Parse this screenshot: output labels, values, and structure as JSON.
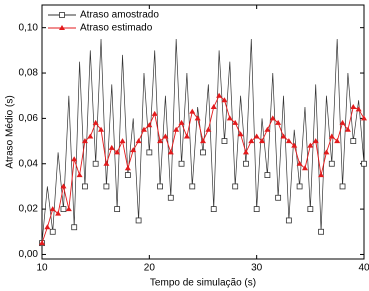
{
  "chart_data": {
    "type": "line",
    "x_label": "Tempo de simulação (s)",
    "y_label": "Atraso Médio (s)",
    "x": [
      10,
      10.5,
      11,
      11.5,
      12,
      12.5,
      13,
      13.5,
      14,
      14.5,
      15,
      15.5,
      16,
      16.5,
      17,
      17.5,
      18,
      18.5,
      19,
      19.5,
      20,
      20.5,
      21,
      21.5,
      22,
      22.5,
      23,
      23.5,
      24,
      24.5,
      25,
      25.5,
      26,
      26.5,
      27,
      27.5,
      28,
      28.5,
      29,
      29.5,
      30,
      30.5,
      31,
      31.5,
      32,
      32.5,
      33,
      33.5,
      34,
      34.5,
      35,
      35.5,
      36,
      36.5,
      37,
      37.5,
      38,
      38.5,
      39,
      39.5,
      40
    ],
    "series": [
      {
        "name": "Atraso amostrado",
        "color": "#333333",
        "marker": "square",
        "values": [
          0.005,
          0.03,
          0.01,
          0.045,
          0.02,
          0.07,
          0.012,
          0.085,
          0.03,
          0.09,
          0.04,
          0.095,
          0.03,
          0.075,
          0.02,
          0.088,
          0.035,
          0.06,
          0.015,
          0.08,
          0.045,
          0.09,
          0.03,
          0.07,
          0.025,
          0.095,
          0.04,
          0.08,
          0.03,
          0.065,
          0.045,
          0.075,
          0.02,
          0.09,
          0.05,
          0.085,
          0.03,
          0.07,
          0.04,
          0.095,
          0.02,
          0.06,
          0.035,
          0.08,
          0.025,
          0.07,
          0.015,
          0.055,
          0.03,
          0.065,
          0.02,
          0.075,
          0.01,
          0.07,
          0.04,
          0.095,
          0.03,
          0.08,
          0.05,
          0.068,
          0.04
        ]
      },
      {
        "name": "Atraso estimado",
        "color": "#e31a1c",
        "marker": "triangle",
        "values": [
          0.005,
          0.012,
          0.02,
          0.018,
          0.03,
          0.02,
          0.042,
          0.035,
          0.05,
          0.052,
          0.058,
          0.055,
          0.04,
          0.047,
          0.045,
          0.05,
          0.038,
          0.046,
          0.05,
          0.055,
          0.057,
          0.062,
          0.05,
          0.052,
          0.045,
          0.055,
          0.058,
          0.052,
          0.063,
          0.06,
          0.05,
          0.055,
          0.065,
          0.07,
          0.068,
          0.06,
          0.058,
          0.053,
          0.045,
          0.05,
          0.052,
          0.05,
          0.055,
          0.06,
          0.058,
          0.052,
          0.05,
          0.048,
          0.04,
          0.038,
          0.048,
          0.05,
          0.035,
          0.045,
          0.052,
          0.05,
          0.058,
          0.055,
          0.065,
          0.064,
          0.06
        ]
      }
    ],
    "xlim": [
      10,
      40
    ],
    "xticks": [
      10,
      20,
      30,
      40
    ],
    "ylim": [
      -0.002,
      0.11
    ],
    "yticks": [
      {
        "value": 0,
        "label": "0,00"
      },
      {
        "value": 0.02,
        "label": "0,02"
      },
      {
        "value": 0.04,
        "label": "0,04"
      },
      {
        "value": 0.06,
        "label": "0,06"
      },
      {
        "value": 0.08,
        "label": "0,08"
      },
      {
        "value": 0.1,
        "label": "0,10"
      }
    ],
    "legend": "upper left"
  }
}
